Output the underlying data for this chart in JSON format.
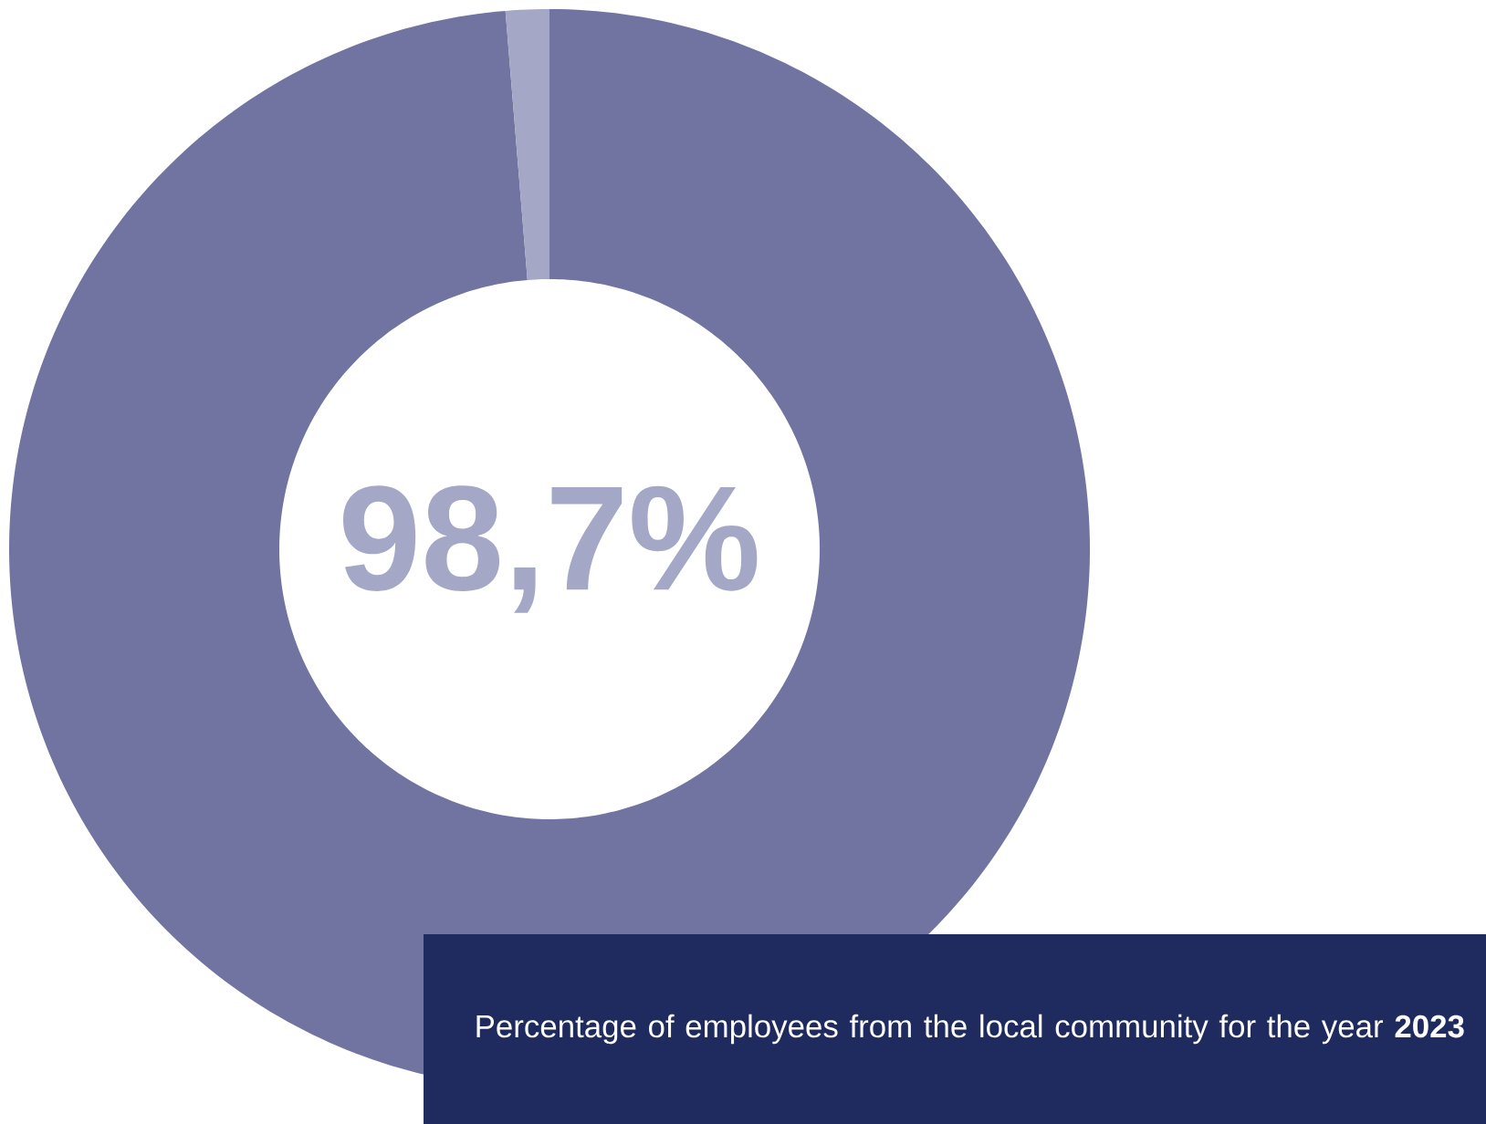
{
  "chart_data": {
    "type": "donut",
    "categories": [
      null,
      null
    ],
    "values": [
      98.7,
      1.3
    ],
    "colors": [
      "#7173a0",
      "#a4a7c5"
    ],
    "value_labels": [
      "98,7%",
      null
    ],
    "annotations": [
      "Percentage of employees from the local community for the year **2023**"
    ]
  }
}
